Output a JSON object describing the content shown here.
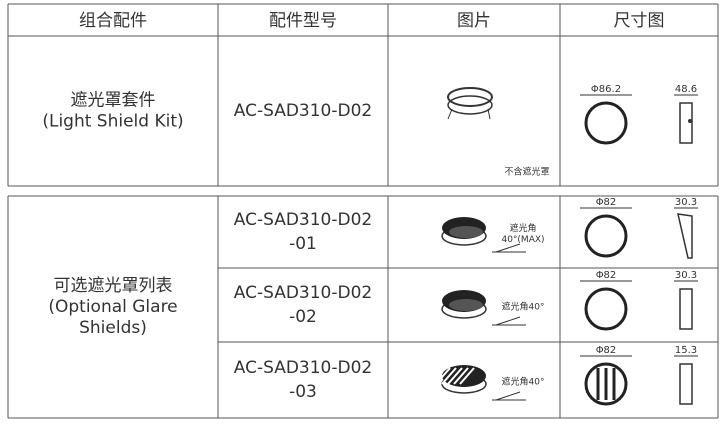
{
  "header": [
    "组合配件",
    "配件型号",
    "图片",
    "尺寸图"
  ],
  "sections": [
    {
      "name": [
        "遮光罩套件",
        "(Light Shield Kit)"
      ],
      "rows": [
        {
          "model": [
            "AC-SAD310-D02"
          ],
          "note": [
            "不含遮光罩"
          ],
          "dims": [
            "Φ86.2",
            "48.6"
          ]
        }
      ]
    },
    {
      "name": [
        "可选遮光罩列表",
        "(Optional Glare",
        "Shields)"
      ],
      "rows": [
        {
          "model": [
            "AC-SAD310-D02",
            "-01"
          ],
          "note": [
            "遮光角",
            "40°(MAX)"
          ],
          "dims": [
            "Φ82",
            "30.3"
          ]
        },
        {
          "model": [
            "AC-SAD310-D02",
            "-02"
          ],
          "note": [
            "遮光角40°"
          ],
          "dims": [
            "Φ82",
            "30.3"
          ]
        },
        {
          "model": [
            "AC-SAD310-D02",
            "-03"
          ],
          "note": [
            "遮光角40°"
          ],
          "dims": [
            "Φ82",
            "15.3"
          ]
        }
      ]
    }
  ]
}
